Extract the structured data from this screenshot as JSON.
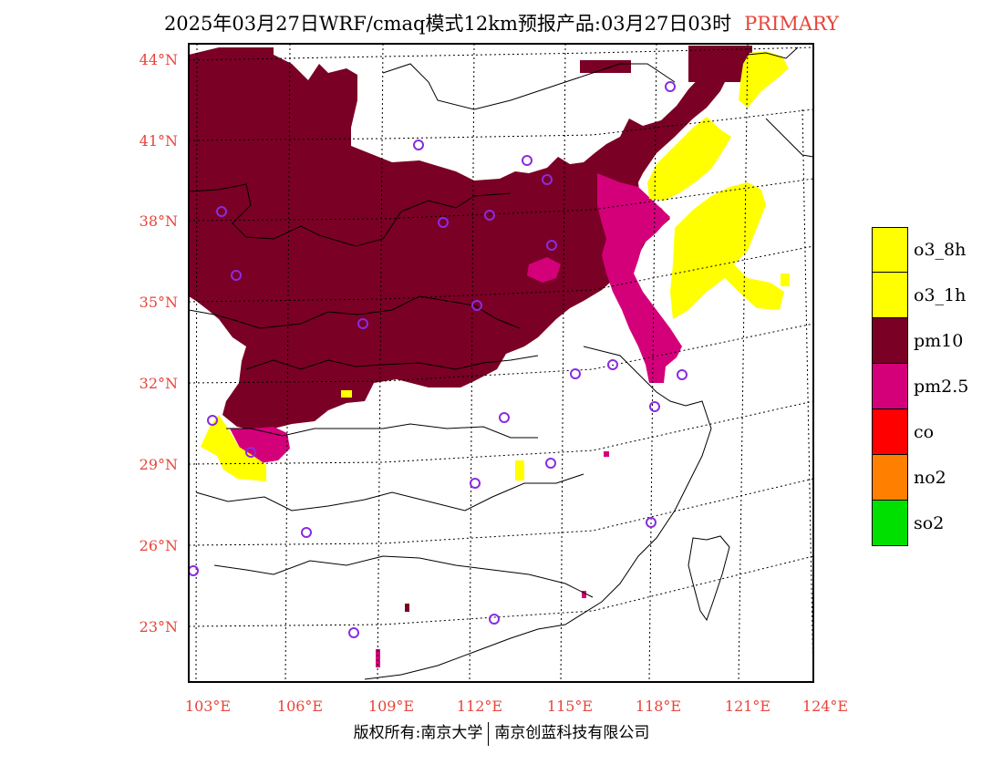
{
  "title": {
    "main": "2025年03月27日WRF/cmaq模式12km预报产品:03月27日03时",
    "tag": "PRIMARY"
  },
  "colors": {
    "pm10": "#7a0026",
    "pm25": "#d4007a",
    "o3": "#ffff00",
    "co": "#ff0000",
    "no2": "#ff8000",
    "so2": "#00e000",
    "axis_label": "#e8443a",
    "station_marker": "#8a2be2"
  },
  "axes": {
    "lat_labels": [
      "44°N",
      "41°N",
      "38°N",
      "35°N",
      "32°N",
      "29°N",
      "26°N",
      "23°N"
    ],
    "lon_labels": [
      "103°E",
      "106°E",
      "109°E",
      "112°E",
      "115°E",
      "118°E",
      "121°E",
      "124°E"
    ]
  },
  "legend": [
    {
      "label": "o3_8h",
      "color": "#ffff00"
    },
    {
      "label": "o3_1h",
      "color": "#ffff00"
    },
    {
      "label": "pm10",
      "color": "#7a0026"
    },
    {
      "label": "pm2.5",
      "color": "#d4007a"
    },
    {
      "label": "co",
      "color": "#ff0000"
    },
    {
      "label": "no2",
      "color": "#ff8000"
    },
    {
      "label": "so2",
      "color": "#00e000"
    }
  ],
  "footer": {
    "left": "版权所有:南京大学",
    "right": "南京创蓝科技有限公司"
  }
}
